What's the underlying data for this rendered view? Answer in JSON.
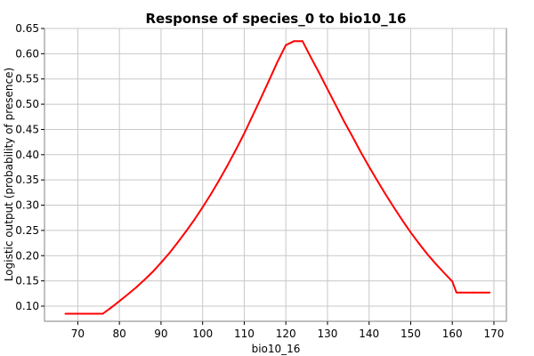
{
  "chart_data": {
    "type": "line",
    "title": "Response of species_0 to bio10_16",
    "xlabel": "bio10_16",
    "ylabel": "Logistic output (probability of presence)",
    "xlim": [
      62,
      173
    ],
    "ylim": [
      0.07,
      0.65
    ],
    "xticks": [
      70,
      80,
      90,
      100,
      110,
      120,
      130,
      140,
      150,
      160,
      170
    ],
    "yticks": [
      0.1,
      0.15,
      0.2,
      0.25,
      0.3,
      0.35,
      0.4,
      0.45,
      0.5,
      0.55,
      0.6,
      0.65
    ],
    "grid": true,
    "series": [
      {
        "color": "#ff0000",
        "x": [
          67,
          70,
          76,
          78,
          80,
          82,
          84,
          86,
          88,
          90,
          92,
          94,
          96,
          98,
          100,
          102,
          104,
          106,
          108,
          110,
          112,
          114,
          116,
          118,
          120,
          122,
          124,
          126,
          128,
          130,
          132,
          134,
          136,
          138,
          140,
          142,
          144,
          146,
          148,
          150,
          152,
          154,
          156,
          158,
          160,
          161,
          165,
          169
        ],
        "y": [
          0.085,
          0.085,
          0.085,
          0.097,
          0.11,
          0.123,
          0.137,
          0.152,
          0.168,
          0.186,
          0.205,
          0.226,
          0.248,
          0.271,
          0.296,
          0.322,
          0.35,
          0.379,
          0.41,
          0.442,
          0.477,
          0.512,
          0.548,
          0.584,
          0.617,
          0.625,
          0.625,
          0.593,
          0.562,
          0.53,
          0.498,
          0.466,
          0.436,
          0.405,
          0.376,
          0.348,
          0.321,
          0.295,
          0.27,
          0.246,
          0.224,
          0.203,
          0.184,
          0.166,
          0.149,
          0.127,
          0.127,
          0.127
        ]
      }
    ]
  }
}
